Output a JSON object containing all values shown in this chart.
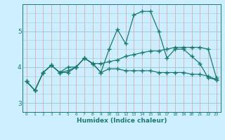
{
  "xlabel": "Humidex (Indice chaleur)",
  "background_color": "#cceeff",
  "grid_color_h": "#99ccdd",
  "grid_color_v": "#ddaaaa",
  "line_color": "#1a7a6e",
  "x_min": -0.5,
  "x_max": 23.5,
  "y_min": 2.75,
  "y_max": 5.75,
  "yticks": [
    3,
    4,
    5
  ],
  "xticks": [
    0,
    1,
    2,
    3,
    4,
    5,
    6,
    7,
    8,
    9,
    10,
    11,
    12,
    13,
    14,
    15,
    16,
    17,
    18,
    19,
    20,
    21,
    22,
    23
  ],
  "line1_x": [
    0,
    1,
    2,
    3,
    4,
    5,
    6,
    7,
    8,
    9,
    10,
    11,
    12,
    13,
    14,
    15,
    16,
    17,
    18,
    19,
    20,
    21,
    22,
    23
  ],
  "line1_y": [
    3.6,
    3.35,
    3.85,
    4.05,
    3.85,
    4.0,
    4.0,
    4.25,
    4.1,
    3.85,
    4.5,
    5.05,
    4.65,
    5.45,
    5.55,
    5.55,
    5.0,
    4.25,
    4.5,
    4.5,
    4.3,
    4.1,
    3.7,
    3.65
  ],
  "line2_x": [
    0,
    1,
    2,
    3,
    4,
    5,
    6,
    7,
    8,
    9,
    10,
    11,
    12,
    13,
    14,
    15,
    16,
    17,
    18,
    19,
    20,
    21,
    22,
    23
  ],
  "line2_y": [
    3.6,
    3.35,
    3.85,
    4.05,
    3.85,
    3.9,
    4.0,
    4.25,
    4.1,
    4.1,
    4.15,
    4.2,
    4.3,
    4.35,
    4.4,
    4.45,
    4.45,
    4.5,
    4.55,
    4.55,
    4.55,
    4.55,
    4.5,
    3.7
  ],
  "line3_x": [
    0,
    1,
    2,
    3,
    4,
    5,
    6,
    7,
    8,
    9,
    10,
    11,
    12,
    13,
    14,
    15,
    16,
    17,
    18,
    19,
    20,
    21,
    22,
    23
  ],
  "line3_y": [
    3.6,
    3.35,
    3.85,
    4.05,
    3.85,
    3.85,
    4.0,
    4.25,
    4.1,
    3.85,
    3.95,
    3.95,
    3.9,
    3.9,
    3.9,
    3.9,
    3.85,
    3.85,
    3.85,
    3.85,
    3.8,
    3.8,
    3.75,
    3.65
  ]
}
